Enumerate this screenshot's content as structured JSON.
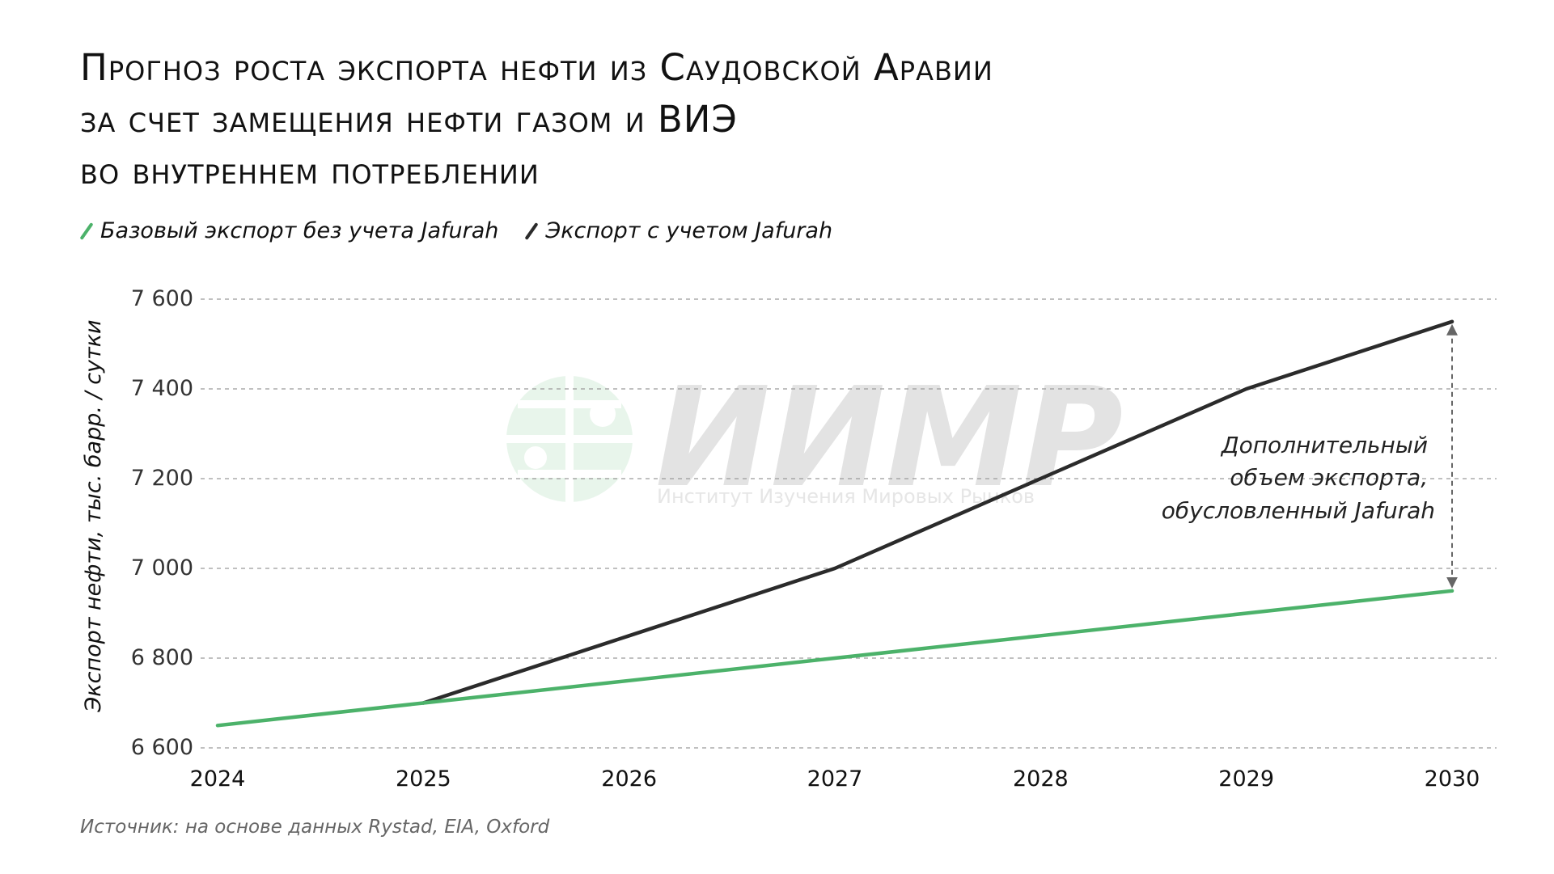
{
  "title_lines": [
    "Прогноз роста экспорта нефти из Саудовской Аравии",
    "за счет замещения нефти газом и ВИЭ",
    "во внутреннем потреблении"
  ],
  "legend": [
    {
      "label": "Базовый экспорт без учета Jafurah",
      "color": "#4cb26a"
    },
    {
      "label": "Экспорт с учетом Jafurah",
      "color": "#2b2b2b"
    }
  ],
  "source": "Источник: на основе данных Rystad, EIA, Oxford",
  "watermark": {
    "logo_text": "ИИМР",
    "subtitle": "Институт Изучения Мировых Рынков",
    "color": "#e3e3e3"
  },
  "chart_data": {
    "type": "line",
    "title": "Прогноз роста экспорта нефти из Саудовской Аравии за счет замещения нефти газом и ВИЭ во внутреннем потреблении",
    "xlabel": "",
    "ylabel": "Экспорт нефти, тыс. барр. / сутки",
    "x": [
      2024,
      2025,
      2026,
      2027,
      2028,
      2029,
      2030
    ],
    "x_tick_labels": [
      "2024",
      "2025",
      "2026",
      "2027",
      "2028",
      "2029",
      "2030"
    ],
    "y_ticks": [
      6600,
      6800,
      7000,
      7200,
      7400,
      7600
    ],
    "y_tick_labels": [
      "6 600",
      "6 800",
      "7 000",
      "7 200",
      "7 400",
      "7 600"
    ],
    "ylim": [
      6600,
      7600
    ],
    "grid": "horizontal dashed",
    "legend_position": "top-left",
    "series": [
      {
        "name": "Базовый экспорт без учета Jafurah",
        "color": "#4cb26a",
        "x": [
          2024,
          2025,
          2026,
          2027,
          2028,
          2029,
          2030
        ],
        "values": [
          6650,
          6700,
          6750,
          6800,
          6850,
          6900,
          6950
        ]
      },
      {
        "name": "Экспорт с учетом Jafurah",
        "color": "#2b2b2b",
        "x": [
          2025,
          2026,
          2027,
          2028,
          2029,
          2030
        ],
        "values": [
          6700,
          6850,
          7000,
          7200,
          7400,
          7550
        ]
      }
    ],
    "annotation": {
      "lines": [
        "Дополнительный",
        "объем экспорта,",
        "обусловленный Jafurah"
      ],
      "x": 2030,
      "from": 6950,
      "to": 7550
    }
  }
}
